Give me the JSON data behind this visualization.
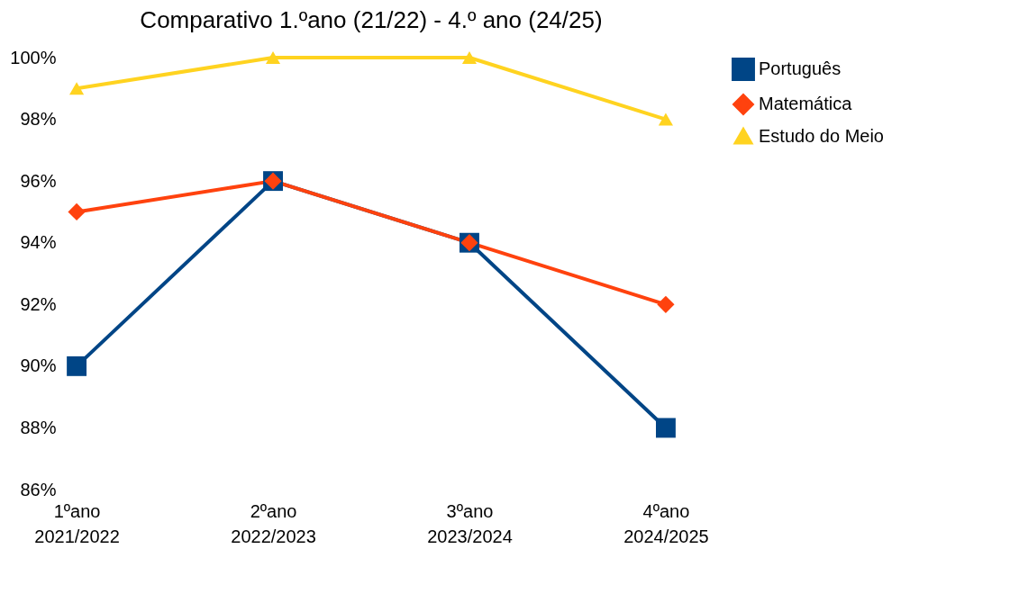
{
  "chart_data": {
    "type": "line",
    "title": "Comparativo 1.ºano (21/22) - 4.º ano (24/25)",
    "categories": [
      "1ºano\n2021/2022",
      "2ºano\n2022/2023",
      "3ºano\n2023/2024",
      "4ºano\n2024/2025"
    ],
    "series": [
      {
        "name": "Português",
        "color": "#004586",
        "marker": "square",
        "values": [
          90,
          96,
          94,
          88
        ]
      },
      {
        "name": "Matemática",
        "color": "#ff420e",
        "marker": "diamond",
        "values": [
          95,
          96,
          94,
          92
        ]
      },
      {
        "name": "Estudo do Meio",
        "color": "#ffd320",
        "marker": "triangle",
        "values": [
          99,
          100,
          100,
          98
        ]
      }
    ],
    "ylim": [
      86,
      100
    ],
    "yticks": [
      {
        "value": 86,
        "label": "86%"
      },
      {
        "value": 88,
        "label": "88%"
      },
      {
        "value": 90,
        "label": "90%"
      },
      {
        "value": 92,
        "label": "92%"
      },
      {
        "value": 94,
        "label": "94%"
      },
      {
        "value": 96,
        "label": "96%"
      },
      {
        "value": 98,
        "label": "98%"
      },
      {
        "value": 100,
        "label": "100%"
      }
    ],
    "grid": false,
    "legend": "right",
    "line_style": "solid"
  }
}
